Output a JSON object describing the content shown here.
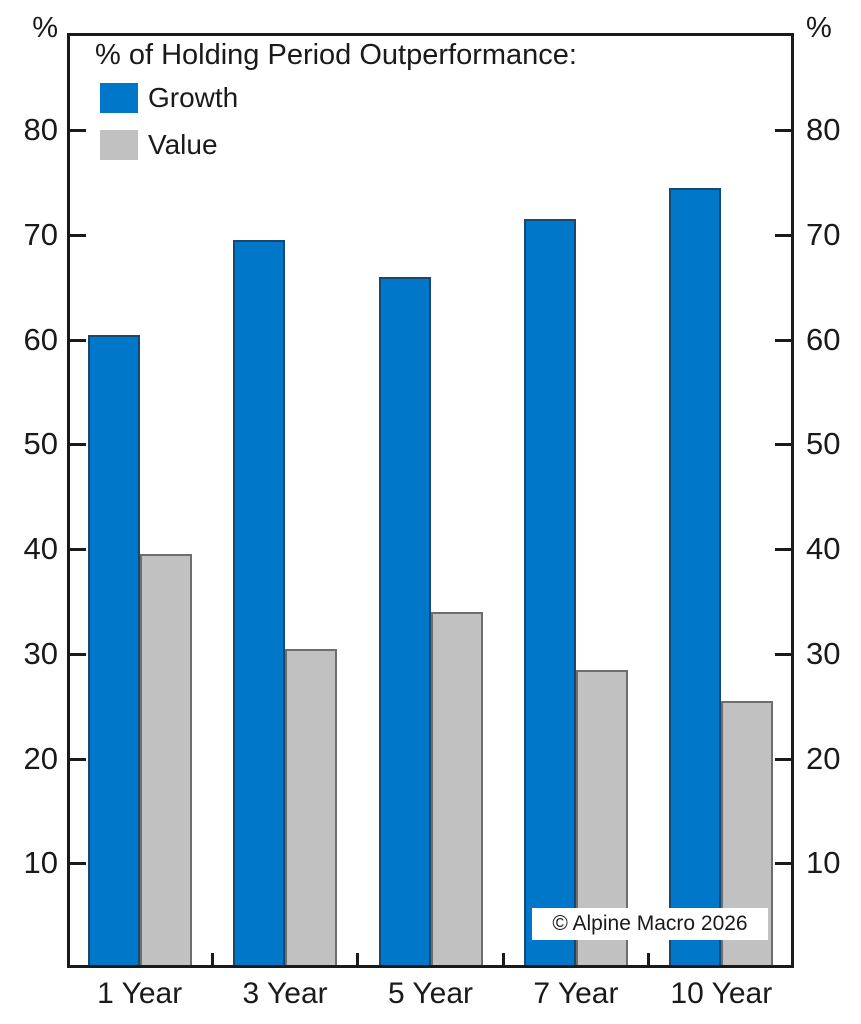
{
  "page": {
    "background": "#FFFFFF"
  },
  "chart_data": {
    "type": "bar",
    "title": "% of Holding Period Outperformance:",
    "categories": [
      "1 Year",
      "3 Year",
      "5 Year",
      "7 Year",
      "10 Year"
    ],
    "series": [
      {
        "name": "Growth",
        "color": "#0077C8",
        "border_color": "#17486F",
        "values": [
          60.5,
          69.5,
          66.0,
          71.5,
          74.5
        ]
      },
      {
        "name": "Value",
        "color": "#C1C1C1",
        "border_color": "#6E6E6E",
        "values": [
          39.5,
          30.5,
          34.0,
          28.5,
          25.5
        ]
      }
    ],
    "ylabel_left": "%",
    "ylabel_right": "%",
    "yticks": [
      10,
      20,
      30,
      40,
      50,
      60,
      70,
      80
    ],
    "ylim": [
      0,
      89.3
    ],
    "grid": false,
    "legend_position": "top-left",
    "axis_color": "#1A1A1A"
  },
  "annotations": {
    "copyright": "© Alpine Macro 2026"
  }
}
